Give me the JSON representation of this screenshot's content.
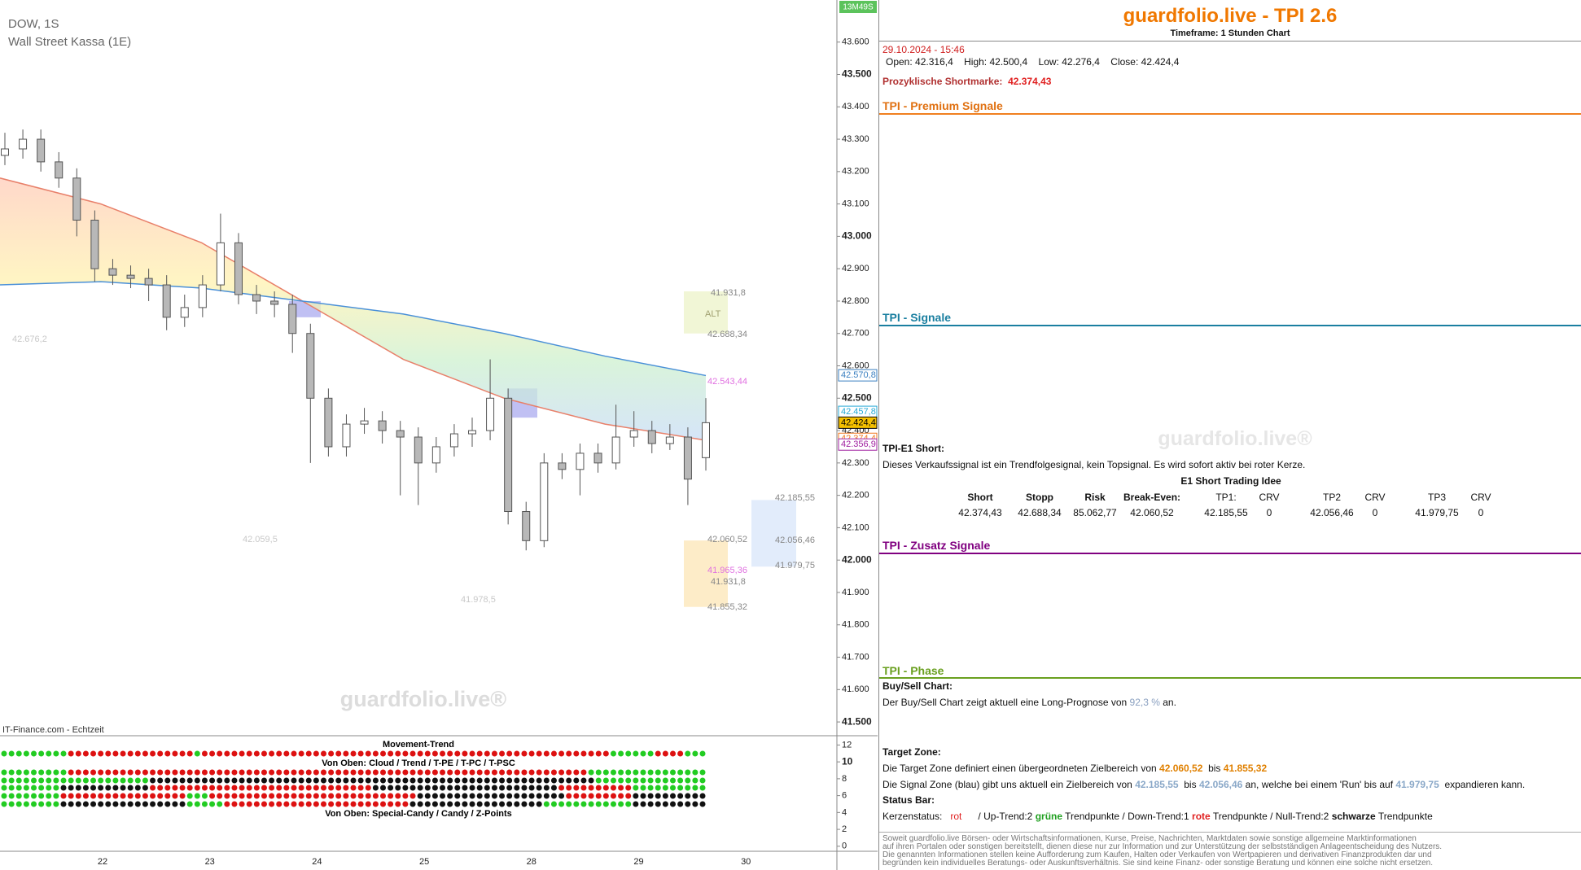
{
  "chart_data": {
    "type": "candlestick",
    "title": "DOW, 1S",
    "subtitle": "Wall Street Kassa (1E)",
    "timer": "13M49S",
    "source": "IT-Finance.com - Echtzeit",
    "watermark": "guardfolio.live®",
    "categories": [
      "22",
      "23",
      "24",
      "25",
      "28",
      "29",
      "30"
    ],
    "open": [
      43250,
      43270,
      43300,
      43230,
      43180,
      43050,
      42900,
      42880,
      42870,
      42850,
      42750,
      42780,
      42850,
      42980,
      42820,
      42800,
      42790,
      42700,
      42500,
      42350,
      42420,
      42430,
      42400,
      42380,
      42300,
      42350,
      42390,
      42400,
      42500,
      42150,
      42060,
      42300,
      42280,
      42330,
      42300,
      42380,
      42400,
      42360,
      42380,
      42316.4
    ],
    "high": [
      43320,
      43330,
      43330,
      43260,
      43210,
      43080,
      42930,
      42910,
      42900,
      42880,
      42820,
      42880,
      43070,
      43010,
      42850,
      42830,
      42820,
      42730,
      42530,
      42450,
      42470,
      42460,
      42430,
      42410,
      42380,
      42420,
      42440,
      42620,
      42530,
      42180,
      42330,
      42330,
      42360,
      42360,
      42480,
      42460,
      42430,
      42420,
      42410,
      42500.4
    ],
    "low": [
      43220,
      43240,
      43200,
      43150,
      43000,
      42860,
      42850,
      42840,
      42800,
      42710,
      42720,
      42750,
      42830,
      42790,
      42760,
      42750,
      42640,
      42300,
      42320,
      42320,
      42390,
      42360,
      42200,
      42170,
      42270,
      42320,
      42350,
      42370,
      42110,
      42030,
      42040,
      42250,
      42200,
      42270,
      42280,
      42350,
      42330,
      42340,
      42170,
      42276.4
    ],
    "close": [
      43270,
      43300,
      43230,
      43180,
      43050,
      42900,
      42880,
      42870,
      42850,
      42750,
      42780,
      42850,
      42980,
      42820,
      42800,
      42790,
      42700,
      42500,
      42350,
      42420,
      42430,
      42400,
      42380,
      42300,
      42350,
      42390,
      42400,
      42500,
      42150,
      42060,
      42300,
      42280,
      42330,
      42300,
      42380,
      42400,
      42360,
      42380,
      42250,
      42424.4
    ],
    "up_color": "#ffffff",
    "down_color": "#b8b8b8",
    "wick_color": "#555555",
    "bands": [
      {
        "color": "#e8806a",
        "values": [
          43180,
          43100,
          42980,
          42800,
          42620,
          42500,
          42420,
          42370
        ]
      },
      {
        "color": "#4a90d8",
        "values": [
          42850,
          42860,
          42840,
          42800,
          42760,
          42700,
          42630,
          42570
        ]
      }
    ],
    "zones": [
      {
        "from": 42060.52,
        "to": 41855.32,
        "color": "#fdecc8"
      },
      {
        "from": 42185.55,
        "to": 41979.75,
        "color": "#e2ecfb"
      },
      {
        "from": 42830,
        "to": 42700,
        "color": "#f1f6d6"
      },
      {
        "from": 42800,
        "to": 42750,
        "color": "#b0b0f0"
      },
      {
        "from": 42530,
        "to": 42440,
        "color": "#b0b0f0"
      }
    ],
    "annotations": [
      {
        "text": "41.931,8",
        "color": "#888888"
      },
      {
        "text": "42.688,34",
        "color": "#888888"
      },
      {
        "text": "ALT",
        "color": "#a0a070"
      },
      {
        "text": "42.543,44",
        "color": "#e070e0"
      },
      {
        "text": "42.060,52",
        "color": "#888888"
      },
      {
        "text": "41.965,36",
        "color": "#e070e0"
      },
      {
        "text": "41.931,8",
        "color": "#888888"
      },
      {
        "text": "41.855,32",
        "color": "#888888"
      },
      {
        "text": "42.185,55",
        "color": "#888888"
      },
      {
        "text": "42.056,46",
        "color": "#888888"
      },
      {
        "text": "41.979,75",
        "color": "#888888"
      },
      {
        "text": "42.676,2",
        "color": "#c8c8c8"
      },
      {
        "text": "42.059,5",
        "color": "#c8c8c8"
      },
      {
        "text": "41.978,5",
        "color": "#c8c8c8"
      }
    ],
    "price_markers": [
      {
        "value": 42570.8,
        "label": "42.570,8",
        "color": "#3a7fc0",
        "fill": "#ffffff"
      },
      {
        "value": 42457.8,
        "label": "42.457,8",
        "color": "#27a9d6",
        "fill": "#ffffff"
      },
      {
        "value": 42424.4,
        "label": "42.424,4",
        "color": "#000000",
        "fill": "#f5c000"
      },
      {
        "value": 42374.4,
        "label": "42.374,4",
        "color": "#f07820",
        "fill": "#ffffff"
      },
      {
        "value": 42356.9,
        "label": "42.356,9",
        "color": "#a020a0",
        "fill": "#ffffff"
      }
    ],
    "ylim": [
      41460,
      43730
    ],
    "yticks": [
      {
        "value": 41500,
        "label": "41.500"
      },
      {
        "value": 41600,
        "label": "41.600"
      },
      {
        "value": 41700,
        "label": "41.700"
      },
      {
        "value": 41800,
        "label": "41.800"
      },
      {
        "value": 41900,
        "label": "41.900"
      },
      {
        "value": 42000,
        "label": "42.000"
      },
      {
        "value": 42100,
        "label": "42.100"
      },
      {
        "value": 42200,
        "label": "42.200"
      },
      {
        "value": 42300,
        "label": "42.300"
      },
      {
        "value": 42400,
        "label": "42.400"
      },
      {
        "value": 42500,
        "label": "42.500"
      },
      {
        "value": 42600,
        "label": "42.600"
      },
      {
        "value": 42700,
        "label": "42.700"
      },
      {
        "value": 42800,
        "label": "42.800"
      },
      {
        "value": 42900,
        "label": "42.900"
      },
      {
        "value": 43000,
        "label": "43.000"
      },
      {
        "value": 43100,
        "label": "43.100"
      },
      {
        "value": 43200,
        "label": "43.200"
      },
      {
        "value": 43300,
        "label": "43.300"
      },
      {
        "value": 43400,
        "label": "43.400"
      },
      {
        "value": 43500,
        "label": "43.500"
      },
      {
        "value": 43600,
        "label": "43.600"
      }
    ],
    "indicator": {
      "title": "Movement-Trend",
      "label_top": "Von Oben: Cloud / Trend / T-PE / T-PC / T-PSC",
      "label_bottom": "Von Oben: Special-Candy / Candy / Z-Points",
      "ylim": [
        -0.5,
        13.1
      ],
      "yticks": [
        12,
        10,
        8,
        6,
        4,
        2,
        0
      ],
      "colors": {
        "g": "#22cc22",
        "r": "#dd1111",
        "k": "#111111"
      },
      "rows": [
        [
          [
            "g",
            9
          ],
          [
            "r",
            17
          ],
          [
            "g",
            1
          ],
          [
            "r",
            55
          ],
          [
            "g",
            6
          ],
          [
            "r",
            4
          ],
          [
            "g",
            3
          ]
        ],
        [
          [
            "g",
            9
          ],
          [
            "r",
            70
          ],
          [
            "g",
            16
          ]
        ],
        [
          [
            "g",
            20
          ],
          [
            "k",
            60
          ],
          [
            "g",
            15
          ]
        ],
        [
          [
            "g",
            8
          ],
          [
            "k",
            12
          ],
          [
            "r",
            30
          ],
          [
            "k",
            25
          ],
          [
            "r",
            10
          ],
          [
            "g",
            10
          ]
        ],
        [
          [
            "g",
            8
          ],
          [
            "r",
            17
          ],
          [
            "g",
            3
          ],
          [
            "r",
            28
          ],
          [
            "k",
            20
          ],
          [
            "r",
            9
          ],
          [
            "k",
            10
          ]
        ],
        [
          [
            "g",
            8
          ],
          [
            "k",
            17
          ],
          [
            "g",
            5
          ],
          [
            "r",
            25
          ],
          [
            "k",
            18
          ],
          [
            "g",
            12
          ],
          [
            "k",
            10
          ]
        ]
      ]
    }
  },
  "report": {
    "title": "guardfolio.live - TPI 2.6",
    "timeframe": "Timeframe: 1 Stunden Chart",
    "datetime": "29.10.2024 - 15:46",
    "ohlc": [
      "Open:",
      "42.316,4",
      "High:",
      "42.500,4",
      "Low:",
      "42.276,4",
      "Close:",
      "42.424,4"
    ],
    "shortmarke": [
      "Prozyklische Shortmarke:",
      "42.374,43"
    ],
    "sections": {
      "premium": "TPI - Premium Signale",
      "signale": "TPI - Signale",
      "zusatz": "TPI - Zusatz Signale",
      "phase": "TPI - Phase"
    },
    "e1": {
      "heading": "TPI-E1 Short:",
      "text": "Dieses Verkaufssignal ist ein Trendfolgesignal, kein Topsignal. Es wird sofort aktiv bei roter Kerze.",
      "table_title": "E1 Short Trading Idee",
      "columns": [
        "Short",
        "Stopp",
        "Risk",
        "Break-Even:",
        "TP1:",
        "CRV",
        "TP2",
        "CRV",
        "TP3",
        "CRV"
      ],
      "values": [
        "42.374,43",
        "42.688,34",
        "85.062,77",
        "42.060,52",
        "42.185,55",
        "0",
        "42.056,46",
        "0",
        "41.979,75",
        "0"
      ]
    },
    "buysell": {
      "heading": "Buy/Sell Chart:",
      "text": [
        "Der Buy/Sell Chart zeigt aktuell eine Long-Prognose von",
        "92,3 %",
        "an."
      ]
    },
    "target": {
      "heading": "Target Zone:",
      "line1": [
        "Die Target Zone definiert einen übergeordneten Zielbereich von",
        "42.060,52",
        "bis",
        "41.855,32"
      ],
      "line2": [
        "Die Signal Zone (blau) gibt uns aktuell ein Zielbereich von",
        "42.185,55",
        "bis",
        "42.056,46",
        "an, welche bei einem 'Run' bis auf",
        "41.979,75",
        "expandieren kann."
      ]
    },
    "status": {
      "heading": "Status Bar:",
      "line": [
        "Kerzenstatus:",
        "rot",
        "/ Up-Trend:2",
        "grüne",
        "Trendpunkte / Down-Trend:1",
        "rote",
        "Trendpunkte / Null-Trend:2",
        "schwarze",
        "Trendpunkte"
      ]
    },
    "disclaimer": [
      "Soweit guardfolio.live Börsen- oder Wirtschaftsinformationen, Kurse, Preise, Nachrichten, Marktdaten sowie sonstige allgemeine Marktinformationen",
      "auf ihren Portalen oder sonstigen bereitstellt, dienen diese nur zur Information und zur Unterstützung der selbstständigen Anlageentscheidung des Nutzers.",
      "Die genannten Informationen stellen keine Aufforderung zum Kaufen, Halten oder Verkaufen von Wertpapieren und derivativen Finanzprodukten dar und",
      "begründen kein individuelles Beratungs- oder Auskunftsverhältnis. Sie sind keine Finanz- oder sonstige Beratung und können eine solche nicht ersetzen."
    ]
  }
}
